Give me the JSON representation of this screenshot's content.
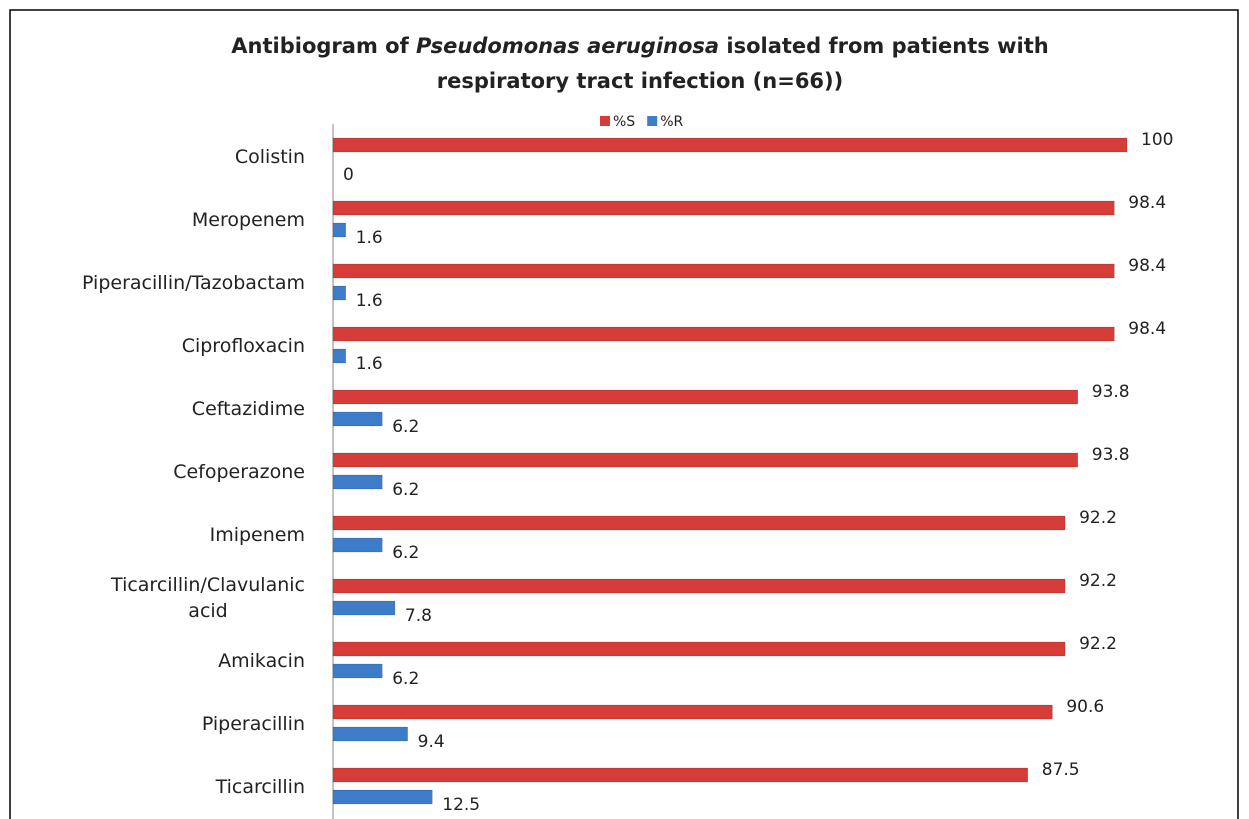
{
  "chart_data": {
    "type": "bar",
    "orientation": "horizontal",
    "title": [
      "Antibiogram of ",
      "Pseudomonas aeruginosa",
      " isolated from patients with",
      "respiratory tract infection (n=66))"
    ],
    "categories": [
      "Colistin",
      "Meropenem",
      "Piperacillin/Tazobactam",
      "Ciprofloxacin",
      "Ceftazidime",
      "Cefoperazone",
      "Imipenem",
      "Ticarcillin/Clavulanic acid",
      "Amikacin",
      "Piperacillin",
      "Ticarcillin"
    ],
    "series": [
      {
        "name": "%S",
        "color": "#d63c38",
        "values": [
          100,
          98.4,
          98.4,
          98.4,
          93.8,
          93.8,
          92.2,
          92.2,
          92.2,
          90.6,
          87.5
        ]
      },
      {
        "name": "%R",
        "color": "#3d7cc9",
        "values": [
          0,
          1.6,
          1.6,
          1.6,
          6.2,
          6.2,
          6.2,
          7.8,
          6.2,
          9.4,
          12.5
        ]
      }
    ],
    "xlim": [
      0,
      100
    ],
    "legend": "top",
    "data_labels": true
  }
}
